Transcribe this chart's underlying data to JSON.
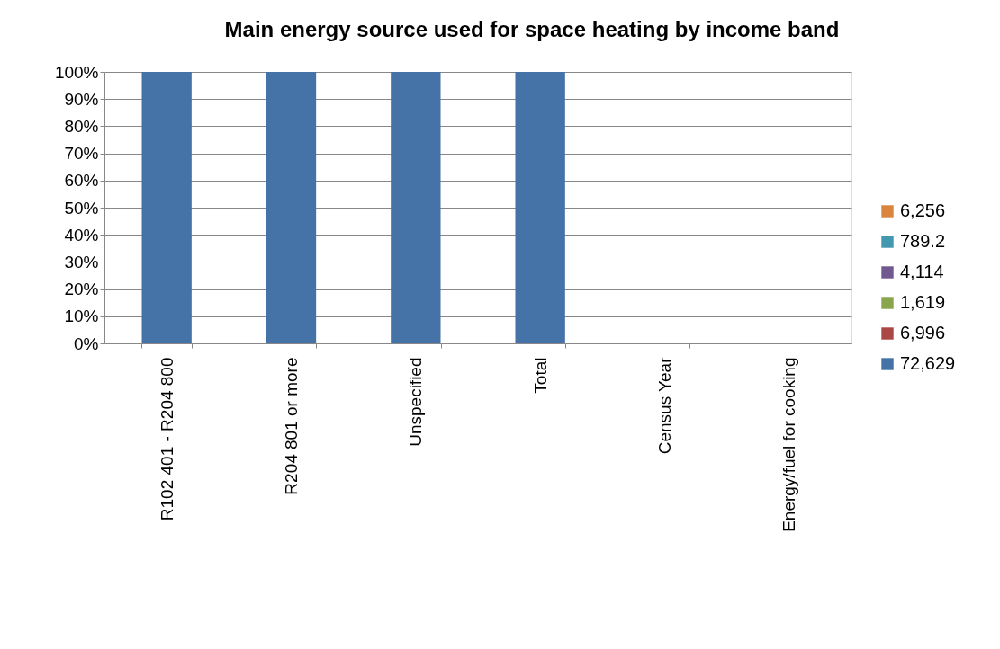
{
  "chart_data": {
    "type": "bar",
    "title": "Main energy source used for space heating by income band",
    "categories": [
      "R102 401 - R204 800",
      "R204 801 or more",
      "Unspecified",
      "Total",
      "Census Year",
      "Energy/fuel for cooking"
    ],
    "series": [
      {
        "name": "72,629",
        "color": "#4572a7",
        "values": [
          100,
          100,
          100,
          100,
          null,
          null
        ]
      },
      {
        "name": "6,996",
        "color": "#aa4643",
        "values": [
          null,
          null,
          null,
          null,
          null,
          null
        ]
      },
      {
        "name": "1,619",
        "color": "#89a54e",
        "values": [
          null,
          null,
          null,
          null,
          null,
          null
        ]
      },
      {
        "name": "4,114",
        "color": "#71588f",
        "values": [
          null,
          null,
          null,
          null,
          null,
          null
        ]
      },
      {
        "name": "789.2",
        "color": "#4198af",
        "values": [
          null,
          null,
          null,
          null,
          null,
          null
        ]
      },
      {
        "name": "6,256",
        "color": "#db843d",
        "values": [
          null,
          null,
          null,
          null,
          null,
          null
        ]
      }
    ],
    "ylim": [
      0,
      100
    ],
    "yticks": [
      {
        "value": 0,
        "label": "0%"
      },
      {
        "value": 10,
        "label": "10%"
      },
      {
        "value": 20,
        "label": "20%"
      },
      {
        "value": 30,
        "label": "30%"
      },
      {
        "value": 40,
        "label": "40%"
      },
      {
        "value": 50,
        "label": "50%"
      },
      {
        "value": 60,
        "label": "60%"
      },
      {
        "value": 70,
        "label": "70%"
      },
      {
        "value": 80,
        "label": "80%"
      },
      {
        "value": 90,
        "label": "90%"
      },
      {
        "value": 100,
        "label": "100%"
      }
    ],
    "grid": "y",
    "legend": "right"
  }
}
